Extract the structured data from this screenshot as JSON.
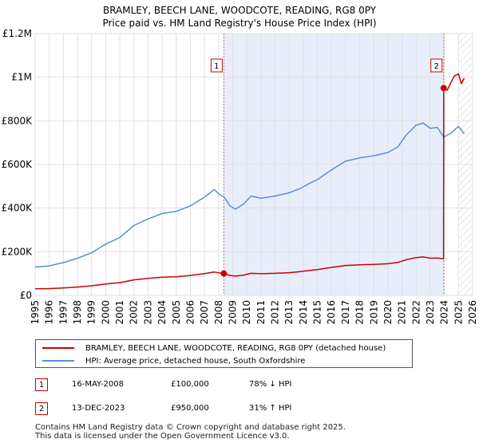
{
  "header": {
    "title": "BRAMLEY, BEECH LANE, WOODCOTE, READING, RG8 0PY",
    "subtitle": "Price paid vs. HM Land Registry's House Price Index (HPI)"
  },
  "legend": {
    "items": [
      {
        "label": "BRAMLEY, BEECH LANE, WOODCOTE, READING, RG8 0PY (detached house)",
        "color": "#cc0000"
      },
      {
        "label": "HPI: Average price, detached house, South Oxfordshire",
        "color": "#5b8fd4"
      }
    ]
  },
  "transactions": [
    {
      "num": "1",
      "date": "16-MAY-2008",
      "price": "£100,000",
      "hpi": "78% ↓ HPI"
    },
    {
      "num": "2",
      "date": "13-DEC-2023",
      "price": "£950,000",
      "hpi": "31% ↑ HPI"
    }
  ],
  "footer": {
    "line1": "Contains HM Land Registry data © Crown copyright and database right 2025.",
    "line2": "This data is licensed under the Open Government Licence v3.0."
  },
  "chart_data": {
    "type": "line",
    "title": "BRAMLEY, BEECH LANE, WOODCOTE, READING, RG8 0PY",
    "xlim": [
      1995,
      2026
    ],
    "ylim": [
      0,
      1200000
    ],
    "x_ticks": [
      1995,
      1996,
      1997,
      1998,
      1999,
      2000,
      2001,
      2002,
      2003,
      2004,
      2005,
      2006,
      2007,
      2008,
      2009,
      2010,
      2011,
      2012,
      2013,
      2014,
      2015,
      2016,
      2017,
      2018,
      2019,
      2020,
      2021,
      2022,
      2023,
      2024,
      2025,
      2026
    ],
    "y_ticks": [
      {
        "value": 0,
        "label": "£0"
      },
      {
        "value": 200000,
        "label": "£200K"
      },
      {
        "value": 400000,
        "label": "£400K"
      },
      {
        "value": 600000,
        "label": "£600K"
      },
      {
        "value": 800000,
        "label": "£800K"
      },
      {
        "value": 1000000,
        "label": "£1M"
      },
      {
        "value": 1200000,
        "label": "£1.2M"
      }
    ],
    "highlight_range": [
      2008.37,
      2023.95
    ],
    "hatch_from": 2025.0,
    "series": [
      {
        "name": "HPI: Average price, detached house, South Oxfordshire",
        "color": "#5b8fd4",
        "points": [
          [
            1995.0,
            130000
          ],
          [
            1996.0,
            135000
          ],
          [
            1997.0,
            150000
          ],
          [
            1998.0,
            170000
          ],
          [
            1999.0,
            195000
          ],
          [
            2000.0,
            235000
          ],
          [
            2001.0,
            265000
          ],
          [
            2002.0,
            320000
          ],
          [
            2003.0,
            350000
          ],
          [
            2004.0,
            375000
          ],
          [
            2005.0,
            385000
          ],
          [
            2006.0,
            410000
          ],
          [
            2007.0,
            450000
          ],
          [
            2007.7,
            485000
          ],
          [
            2008.0,
            465000
          ],
          [
            2008.4,
            450000
          ],
          [
            2008.8,
            410000
          ],
          [
            2009.2,
            395000
          ],
          [
            2009.8,
            420000
          ],
          [
            2010.3,
            455000
          ],
          [
            2011.0,
            445000
          ],
          [
            2012.0,
            455000
          ],
          [
            2013.0,
            470000
          ],
          [
            2013.8,
            490000
          ],
          [
            2014.5,
            515000
          ],
          [
            2015.0,
            530000
          ],
          [
            2016.0,
            575000
          ],
          [
            2017.0,
            615000
          ],
          [
            2018.0,
            630000
          ],
          [
            2019.0,
            640000
          ],
          [
            2020.0,
            655000
          ],
          [
            2020.7,
            680000
          ],
          [
            2021.3,
            735000
          ],
          [
            2022.0,
            780000
          ],
          [
            2022.5,
            790000
          ],
          [
            2023.0,
            765000
          ],
          [
            2023.5,
            770000
          ],
          [
            2023.95,
            725000
          ],
          [
            2024.5,
            745000
          ],
          [
            2025.0,
            775000
          ],
          [
            2025.4,
            740000
          ]
        ]
      },
      {
        "name": "BRAMLEY, BEECH LANE, WOODCOTE, READING, RG8 0PY (detached house)",
        "color": "#cc0000",
        "points": [
          [
            1995.0,
            30000
          ],
          [
            1996.0,
            31000
          ],
          [
            1997.0,
            34000
          ],
          [
            1998.0,
            38000
          ],
          [
            1999.0,
            44000
          ],
          [
            2000.0,
            52000
          ],
          [
            2001.0,
            58000
          ],
          [
            2002.0,
            71000
          ],
          [
            2003.0,
            78000
          ],
          [
            2004.0,
            83000
          ],
          [
            2005.0,
            85000
          ],
          [
            2006.0,
            91000
          ],
          [
            2007.0,
            100000
          ],
          [
            2007.7,
            107000
          ],
          [
            2008.0,
            103000
          ],
          [
            2008.37,
            100000
          ],
          [
            2008.8,
            91000
          ],
          [
            2009.2,
            88000
          ],
          [
            2009.8,
            93000
          ],
          [
            2010.3,
            101000
          ],
          [
            2011.0,
            99000
          ],
          [
            2012.0,
            101000
          ],
          [
            2013.0,
            104000
          ],
          [
            2013.8,
            109000
          ],
          [
            2014.5,
            114000
          ],
          [
            2015.0,
            118000
          ],
          [
            2016.0,
            128000
          ],
          [
            2017.0,
            137000
          ],
          [
            2018.0,
            140000
          ],
          [
            2019.0,
            142000
          ],
          [
            2020.0,
            145000
          ],
          [
            2020.7,
            151000
          ],
          [
            2021.3,
            163000
          ],
          [
            2022.0,
            173000
          ],
          [
            2022.5,
            176000
          ],
          [
            2023.0,
            170000
          ],
          [
            2023.5,
            171000
          ],
          [
            2023.94,
            168000
          ],
          [
            2023.95,
            950000
          ],
          [
            2024.2,
            940000
          ],
          [
            2024.5,
            980000
          ],
          [
            2024.7,
            1005000
          ],
          [
            2025.0,
            1015000
          ],
          [
            2025.2,
            970000
          ],
          [
            2025.4,
            995000
          ]
        ]
      }
    ],
    "markers": [
      {
        "label": "1",
        "x": 2008.37,
        "y": 100000
      },
      {
        "label": "2",
        "x": 2023.95,
        "y": 950000
      }
    ]
  }
}
